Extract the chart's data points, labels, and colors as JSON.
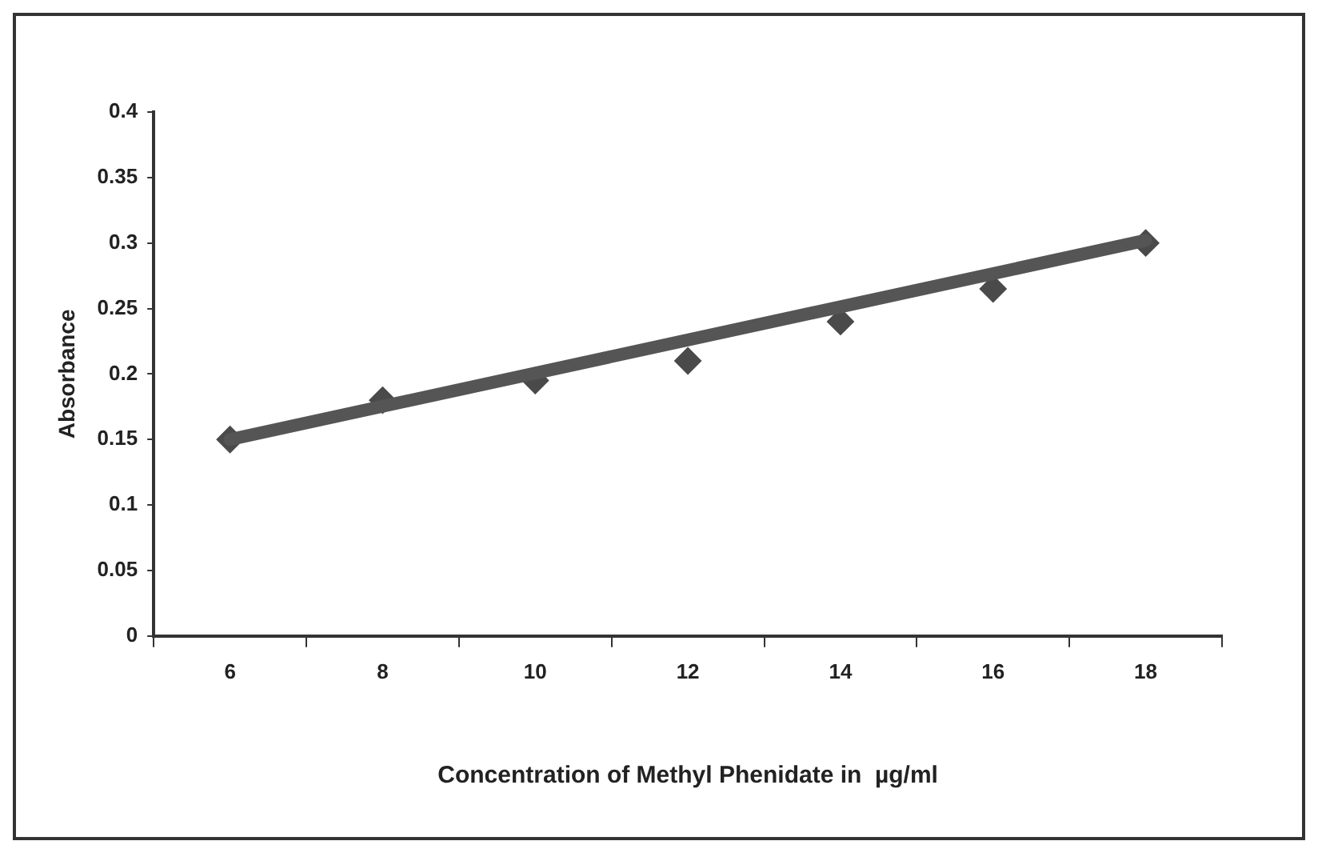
{
  "chart_data": {
    "type": "scatter",
    "xlabel": "Concentration of Methyl Phenidate in  µg/ml",
    "ylabel": "Absorbance",
    "categories": [
      "6",
      "8",
      "10",
      "12",
      "14",
      "16",
      "18"
    ],
    "series": [
      {
        "color": "#4a4a4a",
        "values": [
          0.15,
          0.18,
          0.195,
          0.21,
          0.24,
          0.265,
          0.3
        ]
      },
      {
        "type": "line",
        "color": "#555555",
        "x": [
          "6",
          "18"
        ],
        "values": [
          0.15,
          0.302
        ],
        "marker": "none"
      }
    ],
    "ylim": [
      0,
      0.4
    ],
    "yticks": [
      0,
      0.05,
      0.1,
      0.15,
      0.2,
      0.25,
      0.3,
      0.35,
      0.4
    ],
    "marker": "diamond",
    "grid": false,
    "legend": false
  }
}
